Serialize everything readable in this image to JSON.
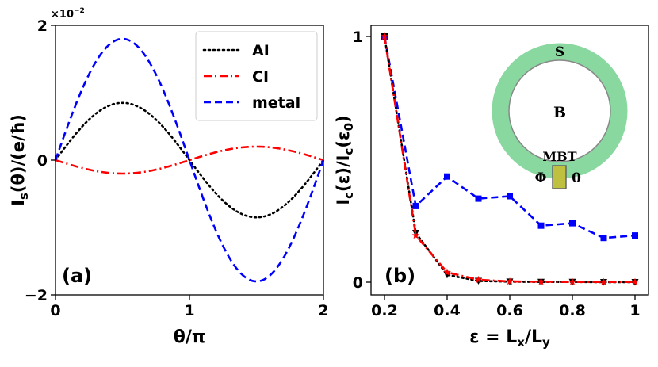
{
  "chart_data": [
    {
      "panel_label": "(a)",
      "type": "line",
      "title": "",
      "xlabel": "θ/π",
      "ylabel": "I_s(θ)/(e/ħ)",
      "scale_label": "×10",
      "scale_exponent": "−2",
      "xlim": [
        0,
        2
      ],
      "ylim": [
        -2,
        2
      ],
      "xticks": [
        {
          "v": 0,
          "label": "0"
        },
        {
          "v": 1,
          "label": "1"
        },
        {
          "v": 2,
          "label": "2"
        }
      ],
      "yticks": [
        {
          "v": -2,
          "label": "−2"
        },
        {
          "v": 0,
          "label": "0"
        },
        {
          "v": 2,
          "label": "2"
        }
      ],
      "legend_position": "top-right",
      "series": [
        {
          "name": "AI",
          "color": "#000000",
          "dash": "dotted",
          "amp1": 0.85,
          "amp2": 0.0
        },
        {
          "name": "CI",
          "color": "#ff0000",
          "dash": "dashdot",
          "amp1": -0.2,
          "amp2": 0.0
        },
        {
          "name": "metal",
          "color": "#0000ff",
          "dash": "dashed",
          "amp1": 1.8,
          "amp2": 0.0
        }
      ]
    },
    {
      "panel_label": "(b)",
      "type": "line",
      "title": "",
      "xlabel": "ε = L_x/L_y",
      "ylabel": "I_c(ε)/I_c(ε_0)",
      "xlim": [
        0.2,
        1.0
      ],
      "ylim": [
        0,
        1
      ],
      "xticks": [
        {
          "v": 0.2,
          "label": "0.2"
        },
        {
          "v": 0.4,
          "label": "0.4"
        },
        {
          "v": 0.6,
          "label": "0.6"
        },
        {
          "v": 0.8,
          "label": "0.8"
        },
        {
          "v": 1.0,
          "label": "1"
        }
      ],
      "yticks": [
        {
          "v": 0,
          "label": "0"
        },
        {
          "v": 1,
          "label": "1"
        }
      ],
      "x": [
        0.2,
        0.3,
        0.4,
        0.5,
        0.6,
        0.7,
        0.8,
        0.9,
        1.0
      ],
      "series": [
        {
          "name": "metal",
          "color": "#0000ff",
          "dash": "dashed",
          "marker": "square",
          "values": [
            1.0,
            0.31,
            0.43,
            0.34,
            0.35,
            0.23,
            0.24,
            0.18,
            0.19
          ]
        },
        {
          "name": "AI",
          "color": "#000000",
          "dash": "dotted",
          "marker": "triangle-down",
          "values": [
            1.0,
            0.2,
            0.03,
            0.005,
            0.002,
            0.001,
            0.001,
            0.0,
            0.0
          ]
        },
        {
          "name": "CI",
          "color": "#ff0000",
          "dash": "dashdot",
          "marker": "star",
          "values": [
            1.0,
            0.19,
            0.04,
            0.01,
            0.003,
            0.002,
            0.001,
            0.001,
            0.001
          ]
        }
      ],
      "inset": {
        "outer_label": "S",
        "inner_label": "B",
        "junction_label": "MBT",
        "left_label": "Φ",
        "right_label": "0",
        "ring_color": "#88d8a0",
        "junction_color": "#c0c040"
      }
    }
  ]
}
